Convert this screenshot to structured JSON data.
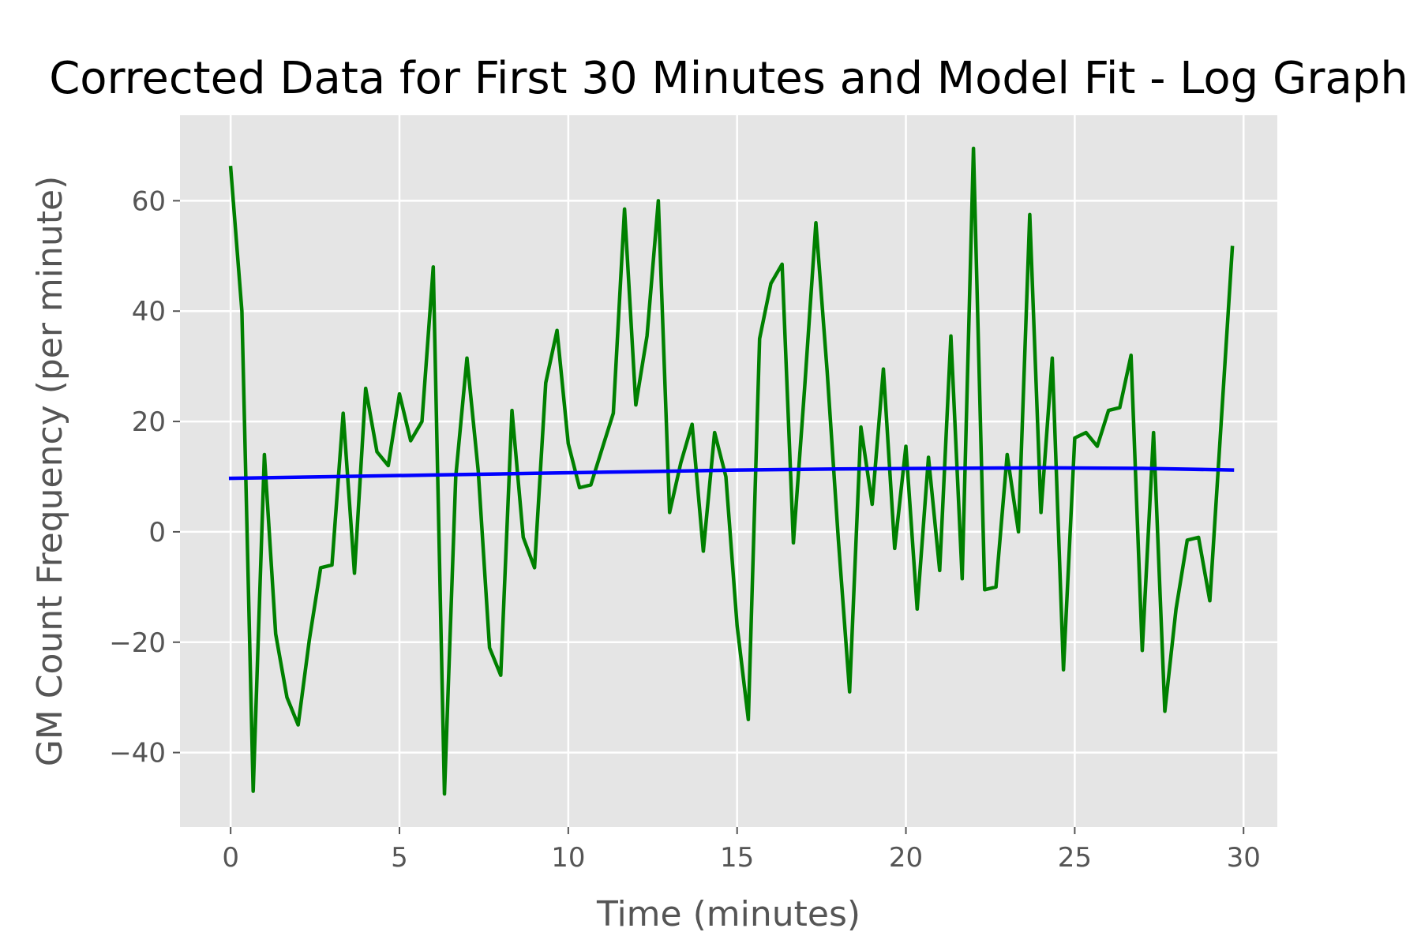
{
  "chart_data": {
    "type": "line",
    "title": "Corrected Data for First 30 Minutes and Model Fit - Log Graph",
    "xlabel": "Time (minutes)",
    "ylabel": "GM Count Frequency (per minute)",
    "xlim": [
      -1.5,
      31
    ],
    "ylim": [
      -53.5,
      75.5
    ],
    "xticks": [
      0,
      5,
      10,
      15,
      20,
      25,
      30
    ],
    "yticks": [
      -40,
      -20,
      0,
      20,
      40,
      60
    ],
    "xtick_labels": [
      "0",
      "5",
      "10",
      "15",
      "20",
      "25",
      "30"
    ],
    "ytick_labels": [
      "−40",
      "−20",
      "0",
      "20",
      "40",
      "60"
    ],
    "grid": true,
    "background": "#e5e5e5",
    "series": [
      {
        "color": "#008000",
        "x": [
          0,
          0.333,
          0.667,
          1,
          1.333,
          1.667,
          2,
          2.333,
          2.667,
          3,
          3.333,
          3.667,
          4,
          4.333,
          4.667,
          5,
          5.333,
          5.667,
          6,
          6.333,
          6.667,
          7,
          7.333,
          7.667,
          8,
          8.333,
          8.667,
          9,
          9.333,
          9.667,
          10,
          10.333,
          10.667,
          11,
          11.333,
          11.667,
          12,
          12.333,
          12.667,
          13,
          13.333,
          13.667,
          14,
          14.333,
          14.667,
          15,
          15.333,
          15.667,
          16,
          16.333,
          16.667,
          17,
          17.333,
          17.667,
          18,
          18.333,
          18.667,
          19,
          19.333,
          19.667,
          20,
          20.333,
          20.667,
          21,
          21.333,
          21.667,
          22,
          22.333,
          22.667,
          23,
          23.333,
          23.667,
          24,
          24.333,
          24.667,
          25,
          25.333,
          25.667,
          26,
          26.333,
          26.667,
          27,
          27.333,
          27.667,
          28,
          28.333,
          28.667,
          29,
          29.667
        ],
        "y": [
          66,
          40,
          -47,
          14,
          -18.5,
          -30,
          -35,
          -19.5,
          -6.5,
          -6,
          21.5,
          -7.5,
          26,
          14.5,
          12,
          25,
          16.5,
          20,
          48,
          -47.5,
          10,
          31.5,
          11,
          -21,
          -26,
          22,
          -1,
          -6.5,
          27,
          36.5,
          16,
          8,
          8.5,
          15,
          21.5,
          58.5,
          23,
          35.5,
          60,
          3.5,
          12.5,
          19.5,
          -3.5,
          18,
          10,
          -17,
          -34,
          35,
          45,
          48.5,
          -2,
          26,
          56,
          29,
          -1.5,
          -29,
          19,
          5,
          29.5,
          -3,
          15.5,
          -14,
          13.5,
          -7,
          35.5,
          -8.5,
          69.5,
          -10.5,
          -10,
          14,
          0,
          57.5,
          3.5,
          31.5,
          -25,
          17,
          18,
          15.5,
          22,
          22.5,
          32,
          -21.5,
          18,
          -32.5,
          -14,
          -1.5,
          -1,
          -12.5,
          51.5
        ]
      },
      {
        "color": "#0000ff",
        "x": [
          0,
          3,
          6,
          9,
          12,
          15,
          18,
          21,
          24,
          27,
          29.667
        ],
        "y": [
          9.7,
          10.0,
          10.3,
          10.6,
          10.9,
          11.2,
          11.4,
          11.5,
          11.6,
          11.5,
          11.2
        ]
      }
    ]
  }
}
